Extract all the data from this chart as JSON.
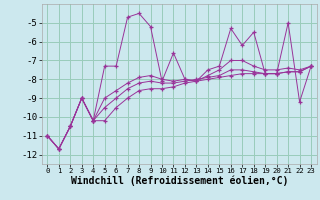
{
  "xlabel": "Windchill (Refroidissement éolien,°C)",
  "bg_color": "#cce8ee",
  "line_color": "#993399",
  "grid_color": "#99ccbb",
  "x_data": [
    0,
    1,
    2,
    3,
    4,
    5,
    6,
    7,
    8,
    9,
    10,
    11,
    12,
    13,
    14,
    15,
    16,
    17,
    18,
    19,
    20,
    21,
    22,
    23
  ],
  "series1": [
    -11.0,
    -11.7,
    -10.5,
    -9.0,
    -10.2,
    -7.3,
    -7.3,
    -4.7,
    -4.5,
    -5.2,
    -8.1,
    -6.6,
    -8.0,
    -8.1,
    -7.5,
    -7.3,
    -5.3,
    -6.2,
    -5.5,
    -7.7,
    -7.7,
    -5.0,
    -9.2,
    -7.3
  ],
  "series2": [
    -11.0,
    -11.7,
    -10.5,
    -9.0,
    -10.2,
    -9.0,
    -8.6,
    -8.2,
    -7.9,
    -7.8,
    -8.0,
    -8.1,
    -8.0,
    -8.1,
    -7.8,
    -7.5,
    -7.0,
    -7.0,
    -7.3,
    -7.5,
    -7.5,
    -7.4,
    -7.5,
    -7.3
  ],
  "series3": [
    -11.0,
    -11.7,
    -10.5,
    -9.0,
    -10.2,
    -9.5,
    -9.0,
    -8.5,
    -8.2,
    -8.1,
    -8.2,
    -8.2,
    -8.1,
    -8.0,
    -7.9,
    -7.8,
    -7.5,
    -7.5,
    -7.6,
    -7.7,
    -7.7,
    -7.6,
    -7.6,
    -7.3
  ],
  "series4": [
    -11.0,
    -11.7,
    -10.5,
    -9.0,
    -10.2,
    -10.2,
    -9.5,
    -9.0,
    -8.6,
    -8.5,
    -8.5,
    -8.4,
    -8.2,
    -8.1,
    -8.0,
    -7.9,
    -7.8,
    -7.7,
    -7.7,
    -7.7,
    -7.7,
    -7.6,
    -7.6,
    -7.3
  ],
  "ylim": [
    -12.5,
    -4.0
  ],
  "xlim": [
    -0.5,
    23.5
  ],
  "yticks": [
    -12,
    -11,
    -10,
    -9,
    -8,
    -7,
    -6,
    -5
  ],
  "xticks": [
    0,
    1,
    2,
    3,
    4,
    5,
    6,
    7,
    8,
    9,
    10,
    11,
    12,
    13,
    14,
    15,
    16,
    17,
    18,
    19,
    20,
    21,
    22,
    23
  ],
  "xlabel_fontsize": 7,
  "tick_fontsize": 6.5
}
